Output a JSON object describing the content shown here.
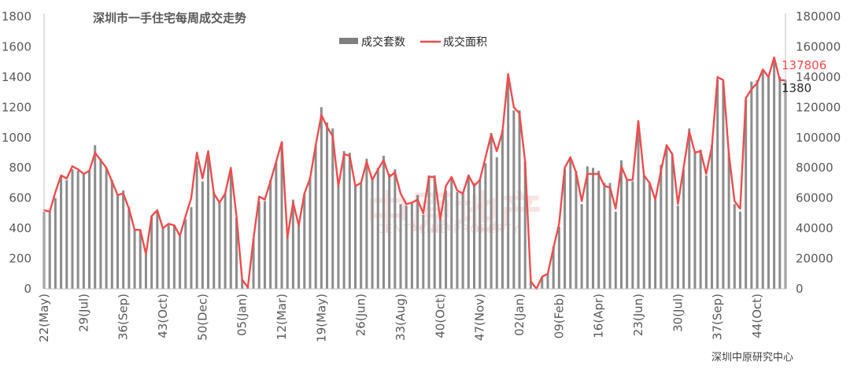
{
  "chart_data": {
    "type": "bar+line",
    "title": "深圳市一手住宅每周成交走势",
    "legend_position": "top-center",
    "grid": false,
    "left_axis": {
      "min": 0,
      "max": 1800,
      "step": 200,
      "ticks": [
        "0",
        "200",
        "400",
        "600",
        "800",
        "1000",
        "1200",
        "1400",
        "1600",
        "1800"
      ]
    },
    "right_axis": {
      "min": 0,
      "max": 180000,
      "step": 20000,
      "ticks": [
        "0",
        "20000",
        "40000",
        "60000",
        "80000",
        "100000",
        "120000",
        "140000",
        "160000",
        "180000"
      ]
    },
    "x_tick_labels": [
      {
        "index": 0,
        "label": "22(May)"
      },
      {
        "index": 7,
        "label": "29(Jul)"
      },
      {
        "index": 14,
        "label": "36(Sep)"
      },
      {
        "index": 21,
        "label": "43(Oct)"
      },
      {
        "index": 28,
        "label": "50(Dec)"
      },
      {
        "index": 35,
        "label": "05(Jan)"
      },
      {
        "index": 42,
        "label": "12(Mar)"
      },
      {
        "index": 49,
        "label": "19(May)"
      },
      {
        "index": 56,
        "label": "26(Jun)"
      },
      {
        "index": 63,
        "label": "33(Aug)"
      },
      {
        "index": 70,
        "label": "40(Oct)"
      },
      {
        "index": 77,
        "label": "47(Nov)"
      },
      {
        "index": 84,
        "label": "02(Jan)"
      },
      {
        "index": 91,
        "label": "09(Feb)"
      },
      {
        "index": 98,
        "label": "16(Apr)"
      },
      {
        "index": 105,
        "label": "23(Jun)"
      },
      {
        "index": 112,
        "label": "30(Jul)"
      },
      {
        "index": 119,
        "label": "37(Sep)"
      },
      {
        "index": 126,
        "label": "44(Oct)"
      }
    ],
    "series": [
      {
        "name": "成交套数",
        "type": "bar",
        "axis": "left",
        "color": "#8c8c8c",
        "values": [
          510,
          510,
          600,
          740,
          720,
          790,
          780,
          760,
          780,
          950,
          860,
          800,
          720,
          620,
          650,
          540,
          390,
          390,
          230,
          480,
          510,
          410,
          430,
          420,
          350,
          460,
          540,
          840,
          710,
          900,
          640,
          570,
          630,
          780,
          470,
          60,
          10,
          330,
          580,
          580,
          720,
          840,
          970,
          350,
          590,
          420,
          630,
          740,
          950,
          1200,
          1100,
          1060,
          680,
          910,
          900,
          680,
          700,
          860,
          730,
          800,
          880,
          760,
          790,
          560,
          550,
          570,
          620,
          490,
          750,
          750,
          470,
          650,
          740,
          640,
          630,
          750,
          700,
          720,
          830,
          1030,
          870,
          1050,
          1380,
          1180,
          1180,
          840,
          50,
          10,
          80,
          100,
          280,
          410,
          790,
          870,
          780,
          560,
          810,
          800,
          780,
          700,
          700,
          510,
          850,
          720,
          710,
          1100,
          750,
          700,
          590,
          820,
          950,
          880,
          550,
          790,
          1060,
          910,
          920,
          750,
          950,
          1380,
          1370,
          900,
          560,
          510,
          1250,
          1370,
          1380,
          1440,
          1400,
          1520,
          1400,
          1380
        ]
      },
      {
        "name": "成交面积",
        "type": "line",
        "axis": "right",
        "color": "#ef4b4b",
        "values": [
          52000,
          51000,
          64000,
          75000,
          73000,
          81000,
          79000,
          76000,
          78000,
          90000,
          85000,
          80000,
          71000,
          62000,
          63000,
          53000,
          39000,
          39000,
          23000,
          48000,
          52000,
          40000,
          43000,
          42000,
          35000,
          48000,
          60000,
          90000,
          73000,
          91000,
          63000,
          57000,
          63000,
          80000,
          48000,
          6000,
          1000,
          33000,
          61000,
          59000,
          71000,
          84000,
          97000,
          34000,
          57000,
          42000,
          63000,
          73000,
          95000,
          115000,
          107000,
          101000,
          68000,
          89000,
          88000,
          68000,
          70000,
          84000,
          72000,
          79000,
          85000,
          74000,
          77000,
          63000,
          56000,
          57000,
          59000,
          50000,
          74000,
          74000,
          46000,
          68000,
          74000,
          65000,
          63000,
          75000,
          68000,
          72000,
          87000,
          102000,
          91000,
          104000,
          142000,
          120000,
          116000,
          84000,
          5000,
          0,
          8000,
          10000,
          27000,
          43000,
          80000,
          87000,
          77000,
          58000,
          76000,
          76000,
          76000,
          68000,
          67000,
          53000,
          81000,
          72000,
          72000,
          111000,
          75000,
          70000,
          59000,
          78000,
          95000,
          89000,
          56000,
          80000,
          104000,
          90000,
          91000,
          76000,
          94000,
          140000,
          138000,
          89000,
          58000,
          53000,
          126000,
          132000,
          136000,
          145000,
          140000,
          153000,
          138000,
          137806
        ]
      }
    ],
    "annotations": [
      {
        "text": "137806",
        "series": "成交面积",
        "index": 133,
        "color": "#ef4b4b"
      },
      {
        "text": "1380",
        "series": "成交套数",
        "index": 133,
        "color": "#262626"
      }
    ],
    "watermark": {
      "cn": "中原地产",
      "en": "CENTALINE PROPERTY"
    },
    "source": "深圳中原研究中心"
  }
}
